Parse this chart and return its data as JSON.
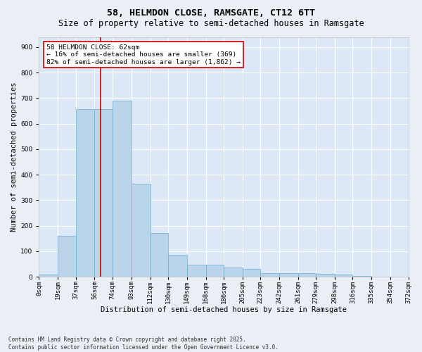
{
  "title1": "58, HELMDON CLOSE, RAMSGATE, CT12 6TT",
  "title2": "Size of property relative to semi-detached houses in Ramsgate",
  "xlabel": "Distribution of semi-detached houses by size in Ramsgate",
  "ylabel": "Number of semi-detached properties",
  "footer1": "Contains HM Land Registry data © Crown copyright and database right 2025.",
  "footer2": "Contains public sector information licensed under the Open Government Licence v3.0.",
  "annotation_title": "58 HELMDON CLOSE: 62sqm",
  "annotation_line1": "← 16% of semi-detached houses are smaller (369)",
  "annotation_line2": "82% of semi-detached houses are larger (1,862) →",
  "subject_size": 62,
  "bins_start": [
    0,
    19,
    37,
    56,
    74,
    93,
    112,
    130,
    149,
    168,
    186,
    205,
    223,
    242,
    261,
    279,
    298,
    316,
    335,
    354
  ],
  "bin_labels": [
    "0sqm",
    "19sqm",
    "37sqm",
    "56sqm",
    "74sqm",
    "93sqm",
    "112sqm",
    "130sqm",
    "149sqm",
    "168sqm",
    "186sqm",
    "205sqm",
    "223sqm",
    "242sqm",
    "261sqm",
    "279sqm",
    "298sqm",
    "316sqm",
    "335sqm",
    "354sqm",
    "372sqm"
  ],
  "bar_values": [
    8,
    160,
    657,
    657,
    690,
    365,
    170,
    85,
    47,
    47,
    35,
    30,
    15,
    13,
    13,
    10,
    8,
    3,
    0,
    0
  ],
  "bar_color": "#bad4ea",
  "bar_edge_color": "#6aaad4",
  "bg_color": "#eaeff5",
  "plot_bg_color": "#dce8f5",
  "grid_color": "#ffffff",
  "vline_color": "#cc0000",
  "vline_x": 62,
  "ylim": [
    0,
    940
  ],
  "yticks": [
    0,
    100,
    200,
    300,
    400,
    500,
    600,
    700,
    800,
    900
  ],
  "annotation_box_color": "#ffffff",
  "annotation_box_edge": "#cc0000",
  "title_fontsize": 9.5,
  "subtitle_fontsize": 8.5,
  "axis_label_fontsize": 7.5,
  "tick_fontsize": 6.5,
  "annotation_fontsize": 6.8,
  "footer_fontsize": 5.5
}
